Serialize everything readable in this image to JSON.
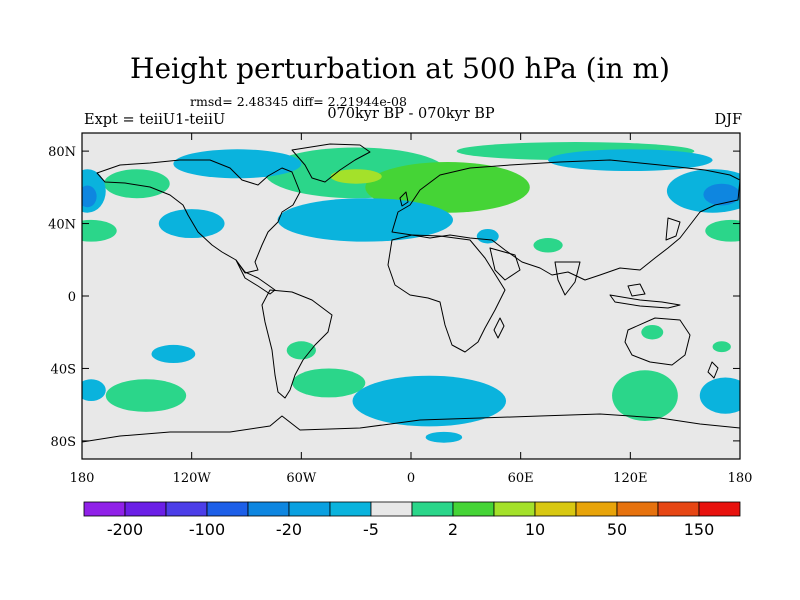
{
  "header": {
    "title": "Height perturbation at 500 hPa (in m)",
    "stats": "rmsd= 2.48345 diff= 2.21944e-08",
    "period": "070kyr BP - 070kyr BP",
    "experiment": "Expt = teiiU1-teiiU",
    "season": "DJF"
  },
  "map": {
    "projection": "cylindrical-equidistant",
    "lon_range": [
      -180,
      180
    ],
    "lat_range": [
      -90,
      90
    ],
    "background_color": "#e8e8e8",
    "coastline_color": "#000000",
    "lat_ticks": [
      {
        "value": 80,
        "label": "80N"
      },
      {
        "value": 40,
        "label": "40N"
      },
      {
        "value": 0,
        "label": "0"
      },
      {
        "value": -40,
        "label": "40S"
      },
      {
        "value": -80,
        "label": "80S"
      }
    ],
    "lon_ticks": [
      {
        "value": -180,
        "label": "180"
      },
      {
        "value": -120,
        "label": "120W"
      },
      {
        "value": -60,
        "label": "60W"
      },
      {
        "value": 0,
        "label": "0"
      },
      {
        "value": 60,
        "label": "60E"
      },
      {
        "value": 120,
        "label": "120E"
      },
      {
        "value": 180,
        "label": "180"
      }
    ],
    "regions": [
      {
        "kind": "positive",
        "level": 2,
        "color": "#2bd68a",
        "lon": -175,
        "lat": 36,
        "rx": 14,
        "ry": 6
      },
      {
        "kind": "positive",
        "level": 2,
        "color": "#2bd68a",
        "lon": 175,
        "lat": 36,
        "rx": 14,
        "ry": 6
      },
      {
        "kind": "positive",
        "level": 2,
        "color": "#2bd68a",
        "lon": -150,
        "lat": 62,
        "rx": 18,
        "ry": 8
      },
      {
        "kind": "positive",
        "level": 2,
        "color": "#2bd68a",
        "lon": -30,
        "lat": 68,
        "rx": 50,
        "ry": 14
      },
      {
        "kind": "positive",
        "level": 5,
        "color": "#45d436",
        "lon": 20,
        "lat": 60,
        "rx": 45,
        "ry": 14
      },
      {
        "kind": "positive",
        "level": 10,
        "color": "#a4e12a",
        "lon": -30,
        "lat": 66,
        "rx": 14,
        "ry": 4
      },
      {
        "kind": "positive",
        "level": 2,
        "color": "#2bd68a",
        "lon": 90,
        "lat": 80,
        "rx": 65,
        "ry": 5
      },
      {
        "kind": "positive",
        "level": 2,
        "color": "#2bd68a",
        "lon": 75,
        "lat": 28,
        "rx": 8,
        "ry": 4
      },
      {
        "kind": "positive",
        "level": 2,
        "color": "#2bd68a",
        "lon": -60,
        "lat": -30,
        "rx": 8,
        "ry": 5
      },
      {
        "kind": "positive",
        "level": 2,
        "color": "#2bd68a",
        "lon": -145,
        "lat": -55,
        "rx": 22,
        "ry": 9
      },
      {
        "kind": "positive",
        "level": 2,
        "color": "#2bd68a",
        "lon": -45,
        "lat": -48,
        "rx": 20,
        "ry": 8
      },
      {
        "kind": "positive",
        "level": 2,
        "color": "#2bd68a",
        "lon": 128,
        "lat": -55,
        "rx": 18,
        "ry": 14
      },
      {
        "kind": "positive",
        "level": 2,
        "color": "#2bd68a",
        "lon": 132,
        "lat": -20,
        "rx": 6,
        "ry": 4
      },
      {
        "kind": "positive",
        "level": 2,
        "color": "#2bd68a",
        "lon": 170,
        "lat": -28,
        "rx": 5,
        "ry": 3
      },
      {
        "kind": "negative",
        "level": -5,
        "color": "#0ab3dd",
        "lon": -177,
        "lat": 58,
        "rx": 10,
        "ry": 12
      },
      {
        "kind": "negative",
        "level": -5,
        "color": "#0ab3dd",
        "lon": 165,
        "lat": 58,
        "rx": 25,
        "ry": 12
      },
      {
        "kind": "negative",
        "level": -5,
        "color": "#0ab3dd",
        "lon": -95,
        "lat": 73,
        "rx": 35,
        "ry": 8
      },
      {
        "kind": "negative",
        "level": -5,
        "color": "#0ab3dd",
        "lon": -120,
        "lat": 40,
        "rx": 18,
        "ry": 8
      },
      {
        "kind": "negative",
        "level": -5,
        "color": "#0ab3dd",
        "lon": -25,
        "lat": 42,
        "rx": 48,
        "ry": 12
      },
      {
        "kind": "negative",
        "level": -5,
        "color": "#0ab3dd",
        "lon": 42,
        "lat": 33,
        "rx": 6,
        "ry": 4
      },
      {
        "kind": "negative",
        "level": -5,
        "color": "#0ab3dd",
        "lon": 120,
        "lat": 75,
        "rx": 45,
        "ry": 6
      },
      {
        "kind": "negative",
        "level": -5,
        "color": "#0ab3dd",
        "lon": -130,
        "lat": -32,
        "rx": 12,
        "ry": 5
      },
      {
        "kind": "negative",
        "level": -5,
        "color": "#0ab3dd",
        "lon": -175,
        "lat": -52,
        "rx": 8,
        "ry": 6
      },
      {
        "kind": "negative",
        "level": -5,
        "color": "#0ab3dd",
        "lon": 10,
        "lat": -58,
        "rx": 42,
        "ry": 14
      },
      {
        "kind": "negative",
        "level": -5,
        "color": "#0ab3dd",
        "lon": 172,
        "lat": -55,
        "rx": 14,
        "ry": 10
      },
      {
        "kind": "negative",
        "level": -5,
        "color": "#0ab3dd",
        "lon": 18,
        "lat": -78,
        "rx": 10,
        "ry": 3
      },
      {
        "kind": "negative",
        "level": -20,
        "color": "#0e86e0",
        "lon": -177,
        "lat": 55,
        "rx": 5,
        "ry": 6
      },
      {
        "kind": "negative",
        "level": -20,
        "color": "#0e86e0",
        "lon": 170,
        "lat": 56,
        "rx": 10,
        "ry": 6
      }
    ]
  },
  "colorbar": {
    "colors": [
      "#9021e8",
      "#6b1fe6",
      "#4c3ee8",
      "#1d5fe8",
      "#0e86e0",
      "#0aa0e0",
      "#0ab3dd",
      "#e8e8e8",
      "#2bd68a",
      "#45d436",
      "#a4e12a",
      "#d8c812",
      "#e8a40a",
      "#e6720e",
      "#e64614",
      "#e8120e"
    ],
    "labels": [
      {
        "index": 1,
        "text": "-200"
      },
      {
        "index": 3,
        "text": "-100"
      },
      {
        "index": 5,
        "text": "-20"
      },
      {
        "index": 7,
        "text": "-5"
      },
      {
        "index": 9,
        "text": "2"
      },
      {
        "index": 11,
        "text": "10"
      },
      {
        "index": 13,
        "text": "50"
      },
      {
        "index": 15,
        "text": "150"
      }
    ]
  }
}
